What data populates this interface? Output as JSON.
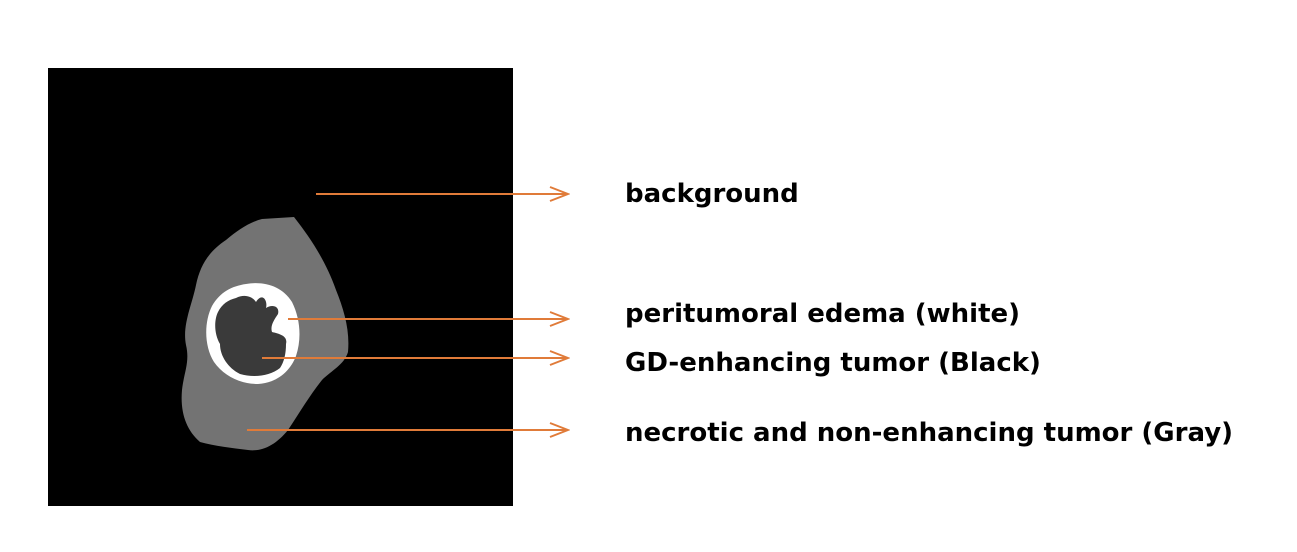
{
  "figure": {
    "colors": {
      "background": "#000000",
      "necrotic_region": "#737373",
      "edema_ring": "#ffffff",
      "enhancing_core": "#3a3a3a",
      "arrow": "#e07b39"
    }
  },
  "legend": {
    "items": [
      {
        "key": "background",
        "label": "background"
      },
      {
        "key": "edema",
        "label": "peritumoral edema (white)"
      },
      {
        "key": "enhancing",
        "label": "GD-enhancing tumor (Black)"
      },
      {
        "key": "necrotic",
        "label": "necrotic and non-enhancing tumor (Gray)"
      }
    ]
  }
}
